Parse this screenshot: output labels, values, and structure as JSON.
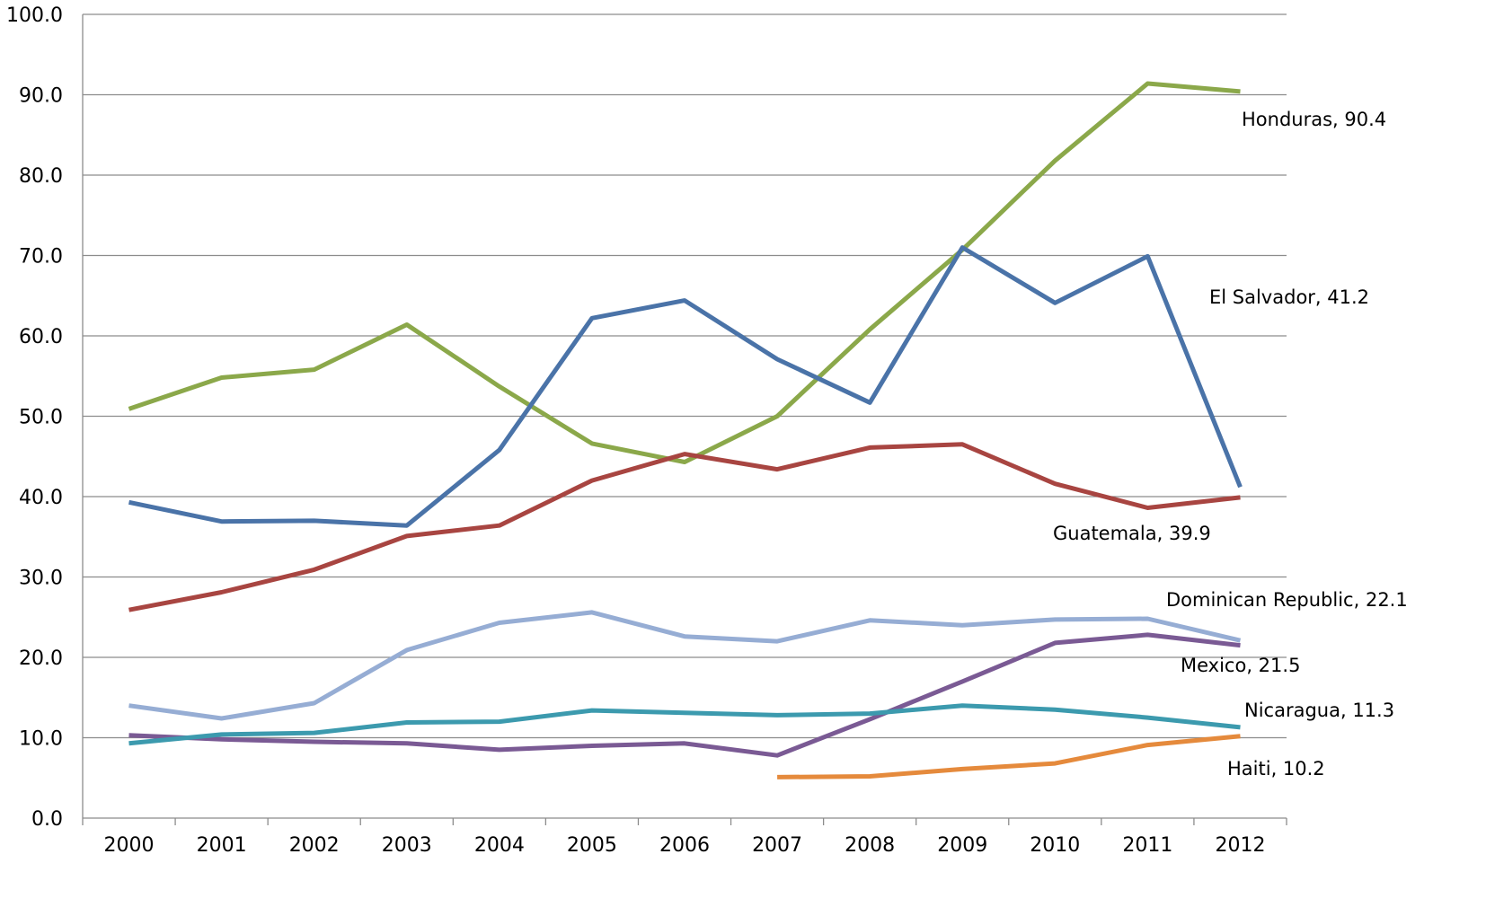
{
  "chart_data": {
    "type": "line",
    "title": "",
    "xlabel": "",
    "ylabel": "",
    "ylim": [
      0,
      100
    ],
    "y_ticks": [
      "0.0",
      "10.0",
      "20.0",
      "30.0",
      "40.0",
      "50.0",
      "60.0",
      "70.0",
      "80.0",
      "90.0",
      "100.0"
    ],
    "categories": [
      "2000",
      "2001",
      "2002",
      "2003",
      "2004",
      "2005",
      "2006",
      "2007",
      "2008",
      "2009",
      "2010",
      "2011",
      "2012"
    ],
    "grid": true,
    "legend": "none",
    "series": [
      {
        "name": "Honduras",
        "label": "Honduras, 90.4",
        "color": "#8BA84A",
        "values": [
          50.9,
          54.8,
          55.8,
          61.4,
          53.7,
          46.6,
          44.3,
          50.0,
          60.8,
          70.7,
          81.8,
          91.4,
          90.4
        ]
      },
      {
        "name": "El Salvador",
        "label": "El Salvador, 41.2",
        "color": "#4A73A8",
        "values": [
          39.3,
          36.9,
          37.0,
          36.4,
          45.8,
          62.2,
          64.4,
          57.1,
          51.7,
          71.0,
          64.1,
          69.9,
          41.2
        ]
      },
      {
        "name": "Guatemala",
        "label": "Guatemala, 39.9",
        "color": "#A84541",
        "values": [
          25.9,
          28.1,
          30.9,
          35.1,
          36.4,
          42.0,
          45.3,
          43.4,
          46.1,
          46.5,
          41.6,
          38.6,
          39.9
        ]
      },
      {
        "name": "Dominican Republic",
        "label": "Dominican Republic, 22.1",
        "color": "#96ADD4",
        "values": [
          14.0,
          12.4,
          14.3,
          20.9,
          24.3,
          25.6,
          22.6,
          22.0,
          24.6,
          24.0,
          24.7,
          24.8,
          22.1
        ]
      },
      {
        "name": "Mexico",
        "label": "Mexico, 21.5",
        "color": "#7A5A94",
        "values": [
          10.3,
          9.8,
          9.5,
          9.3,
          8.5,
          9.0,
          9.3,
          7.8,
          12.3,
          17.0,
          21.8,
          22.8,
          21.5
        ]
      },
      {
        "name": "Nicaragua",
        "label": "Nicaragua, 11.3",
        "color": "#3C9AAE",
        "values": [
          9.3,
          10.4,
          10.6,
          11.9,
          12.0,
          13.4,
          13.1,
          12.8,
          13.0,
          14.0,
          13.5,
          12.5,
          11.3
        ]
      },
      {
        "name": "Haiti",
        "label": "Haiti, 10.2",
        "color": "#E58A3C",
        "values": [
          null,
          null,
          null,
          null,
          null,
          null,
          null,
          5.1,
          5.2,
          6.1,
          6.8,
          9.1,
          10.2
        ]
      }
    ]
  }
}
